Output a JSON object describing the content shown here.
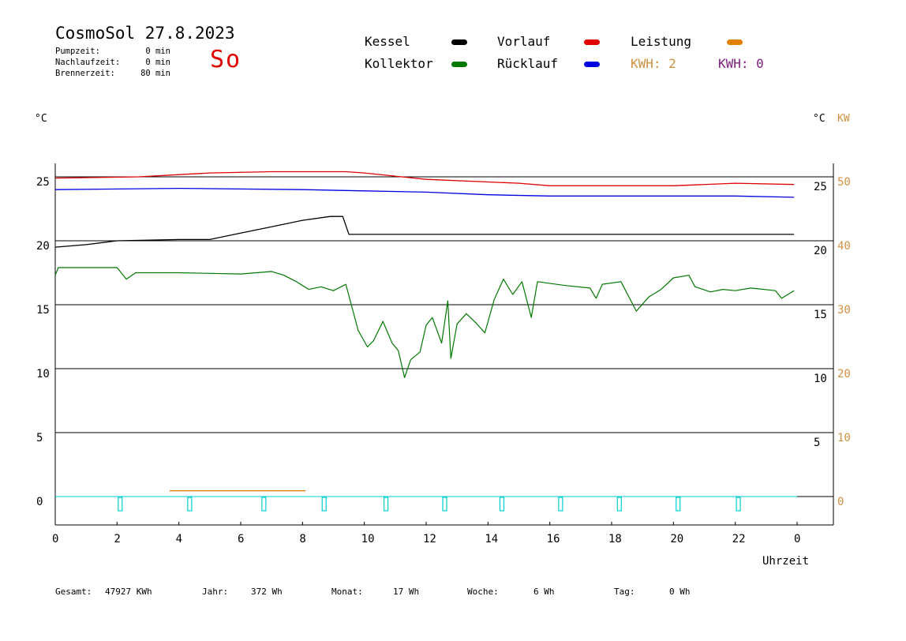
{
  "header": {
    "title": "CosmoSol 27.8.2023",
    "day": "So",
    "stats": [
      {
        "label": "Pumpzeit:",
        "value": "0 min"
      },
      {
        "label": "Nachlaufzeit:",
        "value": "0 min"
      },
      {
        "label": "Brennerzeit:",
        "value": "80 min"
      }
    ]
  },
  "legend": {
    "kessel": "Kessel",
    "kollektor": "Kollektor",
    "vorlauf": "Vorlauf",
    "ruecklauf": "Rücklauf",
    "leistung": "Leistung",
    "kwh1": "KWH: 2",
    "kwh2": "KWH: 0"
  },
  "units": {
    "left": "°C",
    "right_c": "°C",
    "right_kw": "KW"
  },
  "footer": {
    "gesamt_label": "Gesamt:",
    "gesamt_value": "47927 KWh",
    "jahr_label": "Jahr:",
    "jahr_value": "372 Wh",
    "monat_label": "Monat:",
    "monat_value": "17 Wh",
    "woche_label": "Woche:",
    "woche_value": "6 Wh",
    "tag_label": "Tag:",
    "tag_value": "0 Wh"
  },
  "colors": {
    "kessel": "#000000",
    "kollektor": "#007800",
    "vorlauf": "#e00000",
    "ruecklauf": "#0000e0",
    "leistung": "#e08000",
    "kwh1": "#d09040",
    "kwh2": "#802080",
    "pump": "#00d0d0"
  },
  "chart_data": {
    "type": "line",
    "xlabel": "Uhrzeit",
    "x_ticks": [
      "0",
      "2",
      "4",
      "6",
      "8",
      "10",
      "12",
      "14",
      "16",
      "18",
      "20",
      "22",
      "0"
    ],
    "x_range": [
      0,
      24
    ],
    "y_left_ticks": [
      0,
      5,
      10,
      15,
      20,
      25
    ],
    "y_right_ticks": [
      5,
      10,
      15,
      20,
      25
    ],
    "y_kw_ticks": [
      0,
      10,
      20,
      30,
      40,
      50
    ],
    "y_range": [
      -2,
      27
    ],
    "grid": "horizontal at 0,5,10,15,20,25",
    "series": [
      {
        "name": "Vorlauf",
        "color_key": "vorlauf",
        "points": [
          [
            0,
            24.9
          ],
          [
            2.7,
            25.0
          ],
          [
            5,
            25.3
          ],
          [
            7,
            25.4
          ],
          [
            9.4,
            25.4
          ],
          [
            10,
            25.3
          ],
          [
            12,
            24.8
          ],
          [
            14,
            24.6
          ],
          [
            15,
            24.5
          ],
          [
            16,
            24.3
          ],
          [
            18,
            24.3
          ],
          [
            20,
            24.3
          ],
          [
            22,
            24.5
          ],
          [
            23.9,
            24.4
          ]
        ]
      },
      {
        "name": "Rücklauf",
        "color_key": "ruecklauf",
        "points": [
          [
            0,
            24.0
          ],
          [
            4,
            24.1
          ],
          [
            8,
            24.0
          ],
          [
            10,
            23.9
          ],
          [
            12,
            23.8
          ],
          [
            14,
            23.6
          ],
          [
            16,
            23.5
          ],
          [
            18,
            23.5
          ],
          [
            20,
            23.5
          ],
          [
            22,
            23.5
          ],
          [
            23.9,
            23.4
          ]
        ]
      },
      {
        "name": "Kessel",
        "color_key": "kessel",
        "points": [
          [
            0,
            19.5
          ],
          [
            1,
            19.7
          ],
          [
            2,
            20.0
          ],
          [
            4,
            20.1
          ],
          [
            5,
            20.1
          ],
          [
            6,
            20.6
          ],
          [
            7,
            21.1
          ],
          [
            8,
            21.6
          ],
          [
            8.9,
            21.9
          ],
          [
            9.3,
            21.9
          ],
          [
            9.5,
            20.5
          ],
          [
            12,
            20.5
          ],
          [
            16,
            20.5
          ],
          [
            20,
            20.5
          ],
          [
            23.9,
            20.5
          ]
        ]
      },
      {
        "name": "Kollektor",
        "color_key": "kollektor",
        "points": [
          [
            0,
            17.3
          ],
          [
            0.1,
            17.9
          ],
          [
            2,
            17.9
          ],
          [
            2.3,
            17.0
          ],
          [
            2.6,
            17.5
          ],
          [
            4,
            17.5
          ],
          [
            6,
            17.4
          ],
          [
            7,
            17.6
          ],
          [
            7.4,
            17.3
          ],
          [
            7.8,
            16.8
          ],
          [
            8.2,
            16.2
          ],
          [
            8.6,
            16.4
          ],
          [
            9,
            16.1
          ],
          [
            9.4,
            16.6
          ],
          [
            9.6,
            14.8
          ],
          [
            9.8,
            13.0
          ],
          [
            10.1,
            11.7
          ],
          [
            10.3,
            12.2
          ],
          [
            10.6,
            13.7
          ],
          [
            10.9,
            12.0
          ],
          [
            11.1,
            11.4
          ],
          [
            11.3,
            9.3
          ],
          [
            11.5,
            10.7
          ],
          [
            11.8,
            11.3
          ],
          [
            12.0,
            13.4
          ],
          [
            12.2,
            14.0
          ],
          [
            12.5,
            12.0
          ],
          [
            12.7,
            15.3
          ],
          [
            12.8,
            10.8
          ],
          [
            13.0,
            13.5
          ],
          [
            13.3,
            14.3
          ],
          [
            13.6,
            13.6
          ],
          [
            13.9,
            12.8
          ],
          [
            14.2,
            15.4
          ],
          [
            14.5,
            17.0
          ],
          [
            14.8,
            15.8
          ],
          [
            15.1,
            16.8
          ],
          [
            15.4,
            14.0
          ],
          [
            15.6,
            16.8
          ],
          [
            16.5,
            16.5
          ],
          [
            17.3,
            16.3
          ],
          [
            17.5,
            15.5
          ],
          [
            17.7,
            16.6
          ],
          [
            18.3,
            16.8
          ],
          [
            18.8,
            14.5
          ],
          [
            19.2,
            15.6
          ],
          [
            19.6,
            16.2
          ],
          [
            20,
            17.1
          ],
          [
            20.5,
            17.3
          ],
          [
            20.7,
            16.4
          ],
          [
            21.2,
            16.0
          ],
          [
            21.6,
            16.2
          ],
          [
            22.0,
            16.1
          ],
          [
            22.5,
            16.3
          ],
          [
            23.3,
            16.1
          ],
          [
            23.5,
            15.5
          ],
          [
            23.9,
            16.1
          ]
        ]
      },
      {
        "name": "Leistung",
        "color_key": "leistung",
        "points": [
          [
            3.7,
            0.45
          ],
          [
            4.3,
            0.45
          ],
          [
            5,
            0.45
          ],
          [
            6,
            0.45
          ],
          [
            7,
            0.45
          ],
          [
            8,
            0.45
          ],
          [
            8.1,
            0.45
          ]
        ]
      }
    ],
    "pump_markers_x": [
      2.1,
      4.35,
      6.75,
      8.7,
      10.7,
      12.6,
      14.45,
      16.35,
      18.25,
      20.15,
      22.1
    ]
  }
}
